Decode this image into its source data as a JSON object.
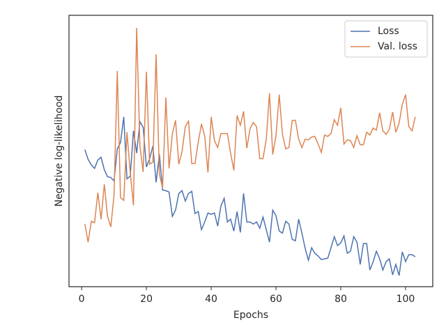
{
  "chart_data": {
    "type": "line",
    "xlabel": "Epochs",
    "ylabel": "Negative log-likelihood",
    "x": [
      1,
      2,
      3,
      4,
      5,
      6,
      7,
      8,
      9,
      10,
      11,
      12,
      13,
      14,
      15,
      16,
      17,
      18,
      19,
      20,
      21,
      22,
      23,
      24,
      25,
      26,
      27,
      28,
      29,
      30,
      31,
      32,
      33,
      34,
      35,
      36,
      37,
      38,
      39,
      40,
      41,
      42,
      43,
      44,
      45,
      46,
      47,
      48,
      49,
      50,
      51,
      52,
      53,
      54,
      55,
      56,
      57,
      58,
      59,
      60,
      61,
      62,
      63,
      64,
      65,
      66,
      67,
      68,
      69,
      70,
      71,
      72,
      73,
      74,
      75,
      76,
      77,
      78,
      79,
      80,
      81,
      82,
      83,
      84,
      85,
      86,
      87,
      88,
      89,
      90,
      91,
      92,
      93,
      94,
      95,
      96,
      97,
      98,
      99,
      100,
      101,
      102,
      103
    ],
    "series": [
      {
        "name": "Loss",
        "color": "#4c72b0",
        "values": [
          197,
          183,
          175,
          170,
          182,
          186,
          168,
          158,
          157,
          152,
          198,
          207,
          244,
          155,
          159,
          224,
          192,
          237,
          229,
          172,
          184,
          202,
          150,
          190,
          139,
          138,
          136,
          101,
          110,
          134,
          138,
          123,
          134,
          137,
          105,
          108,
          82,
          93,
          106,
          104,
          106,
          87,
          116,
          127,
          93,
          97,
          80,
          108,
          78,
          134,
          93,
          93,
          90,
          93,
          84,
          100,
          82,
          64,
          110,
          102,
          80,
          77,
          94,
          90,
          68,
          66,
          97,
          77,
          55,
          38,
          56,
          48,
          44,
          39,
          40,
          41,
          56,
          72,
          59,
          63,
          73,
          48,
          51,
          72,
          64,
          32,
          62,
          62,
          24,
          36,
          51,
          40,
          24,
          36,
          40,
          17,
          32,
          16,
          50,
          36,
          46,
          46,
          43
        ]
      },
      {
        "name": "Val. loss",
        "color": "#dd8452",
        "values": [
          90,
          64,
          94,
          92,
          135,
          97,
          147,
          101,
          86,
          131,
          310,
          128,
          124,
          222,
          164,
          117,
          372,
          202,
          165,
          309,
          176,
          179,
          334,
          162,
          142,
          272,
          170,
          220,
          239,
          176,
          194,
          230,
          238,
          177,
          177,
          208,
          234,
          216,
          164,
          244,
          210,
          200,
          220,
          220,
          220,
          192,
          167,
          246,
          232,
          252,
          199,
          227,
          236,
          230,
          184,
          184,
          212,
          278,
          190,
          217,
          276,
          219,
          198,
          200,
          239,
          239,
          212,
          200,
          212,
          211,
          215,
          216,
          205,
          193,
          218,
          216,
          220,
          240,
          232,
          257,
          205,
          211,
          210,
          200,
          217,
          204,
          204,
          222,
          218,
          228,
          225,
          250,
          224,
          219,
          226,
          251,
          222,
          235,
          262,
          276,
          230,
          224,
          244
        ]
      }
    ],
    "xlim": [
      -3.9,
      108.4
    ],
    "xticks": [
      0,
      20,
      40,
      60,
      80,
      100
    ],
    "ylim": [
      0,
      390
    ],
    "legend": "upper right"
  }
}
